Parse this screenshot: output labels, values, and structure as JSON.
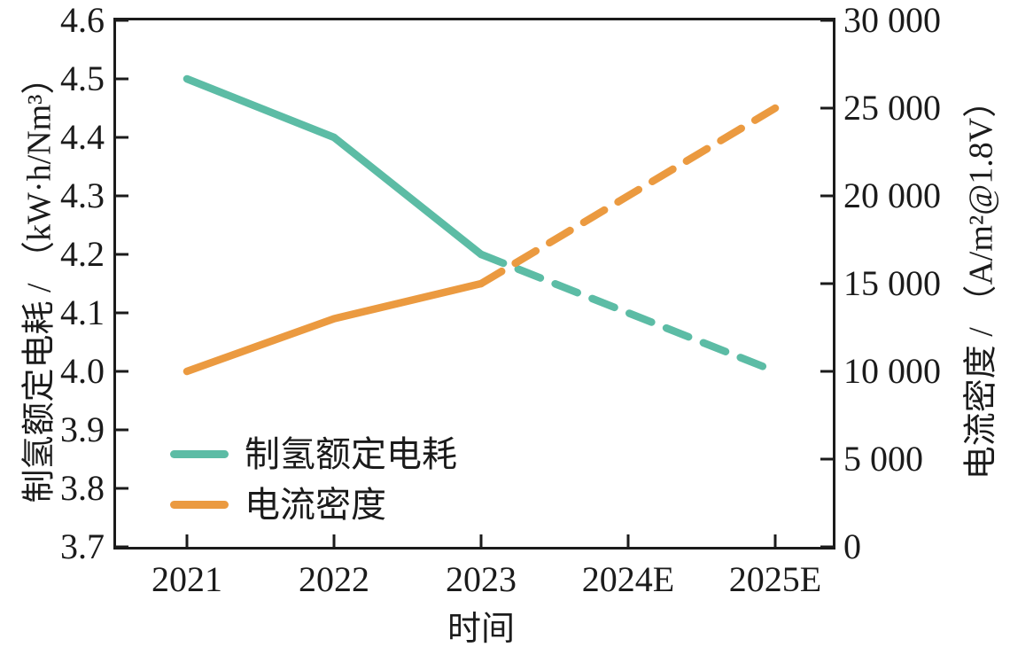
{
  "chart_data": {
    "type": "line",
    "categories": [
      "2021",
      "2022",
      "2023",
      "2024E",
      "2025E"
    ],
    "x_axis": {
      "label": "时间",
      "tick_labels": [
        "2021",
        "2022",
        "2023",
        "2024E",
        "2025E"
      ]
    },
    "left_axis": {
      "label": "制氢额定电耗 / （kW·h/Nm³）",
      "min": 3.7,
      "max": 4.6,
      "tick_labels": [
        "4.6",
        "4.5",
        "4.4",
        "4.3",
        "4.2",
        "4.1",
        "4.0",
        "3.9",
        "3.8",
        "3.7"
      ]
    },
    "right_axis": {
      "label": "电流密度 / （A/m²@1.8V）",
      "min": 0,
      "max": 30000,
      "tick_labels": [
        "30 000",
        "25 000",
        "20 000",
        "15 000",
        "10 000",
        "5 000",
        "0"
      ]
    },
    "series": [
      {
        "name": "制氢额定电耗",
        "axis": "left",
        "color": "#5cbca5",
        "values": [
          4.5,
          4.4,
          4.2,
          4.1,
          4.0
        ],
        "line_style": "solid-then-dashed",
        "dashed_from_category": "2023"
      },
      {
        "name": "电流密度",
        "axis": "right",
        "color": "#eb9a40",
        "values": [
          10000,
          13000,
          15000,
          20000,
          25000
        ],
        "line_style": "solid-then-dashed",
        "dashed_from_category": "2023"
      }
    ],
    "legend": {
      "position": "inside-lower-left",
      "entries": [
        {
          "label": "制氢额定电耗",
          "color": "#5cbca5"
        },
        {
          "label": "电流密度",
          "color": "#eb9a40"
        }
      ]
    },
    "grid": false,
    "background": "#ffffff",
    "spine_color": "#1b1b1b",
    "text_color": "#1b1b1b"
  }
}
